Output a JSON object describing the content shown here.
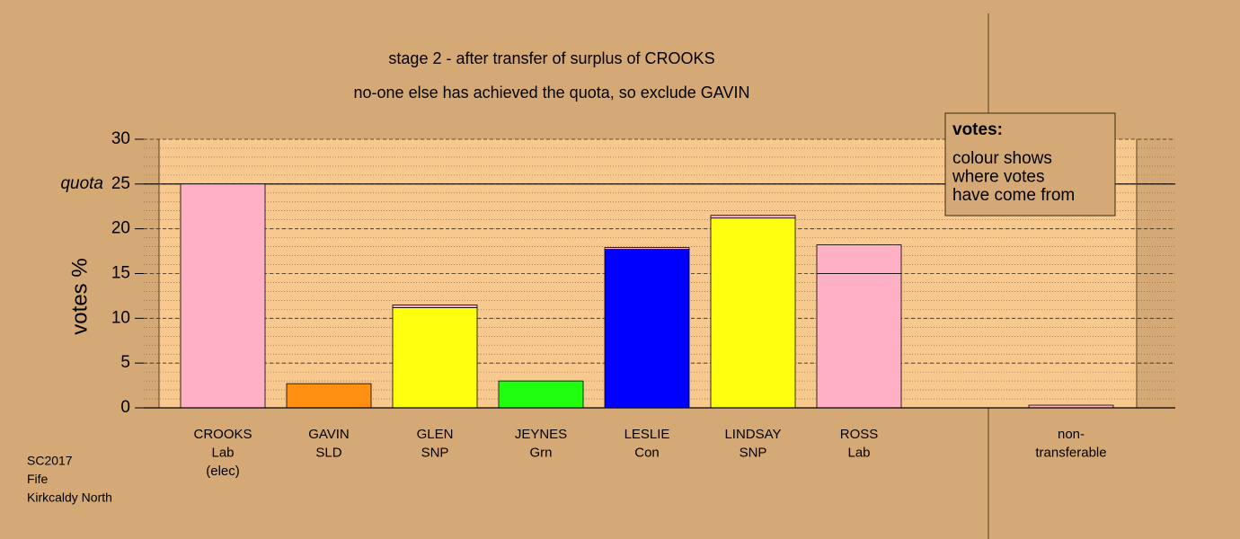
{
  "chart_data": {
    "type": "stacked-bar",
    "title": "stage 2 - after transfer of surplus of CROOKS",
    "subtitle": "no-one else has achieved the quota, so exclude GAVIN",
    "y_label": "votes %",
    "quota_label": "quota",
    "quota": 25,
    "categories": [
      [
        "CROOKS",
        "Lab",
        "(elec)"
      ],
      [
        "GAVIN",
        "SLD"
      ],
      [
        "GLEN",
        "SNP"
      ],
      [
        "JEYNES",
        "Grn"
      ],
      [
        "LESLIE",
        "Con"
      ],
      [
        "LINDSAY",
        "SNP"
      ],
      [
        "ROSS",
        "Lab"
      ],
      [
        "non-",
        "transferable"
      ]
    ],
    "series": [
      {
        "colors": [
          "#ffb0c4",
          "#ff9010",
          "#ffff10",
          "#20ff10",
          "#0000ff",
          "#ffff10",
          "#ffb0c4",
          "#ffb0c4"
        ],
        "values": [
          25,
          2.7,
          11.2,
          3.0,
          17.7,
          21.2,
          15.0,
          0
        ]
      },
      {
        "color": "#ffb0c4",
        "values": [
          0,
          0,
          0.3,
          0,
          0.2,
          0.3,
          3.2,
          0.3
        ]
      }
    ],
    "ylim": [
      0,
      30
    ],
    "yticks": [
      0,
      5,
      10,
      15,
      20,
      25,
      30
    ],
    "legend_title": "votes:",
    "legend_lines": [
      "colour shows",
      "where votes",
      "have come from"
    ],
    "footer": [
      "SC2017",
      "Fife",
      "Kirkcaldy North"
    ]
  }
}
